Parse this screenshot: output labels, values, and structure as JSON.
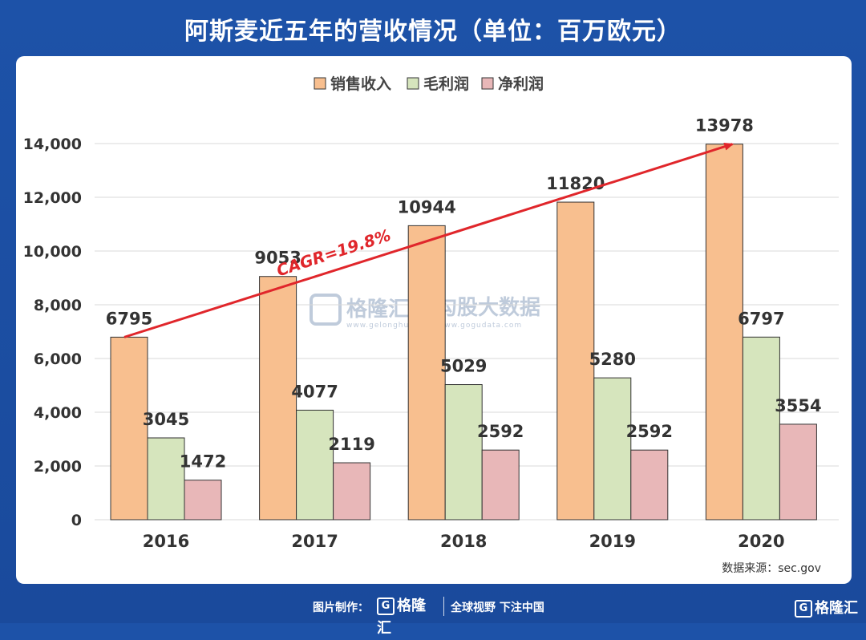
{
  "page": {
    "title": "阿斯麦近五年的营收情况（单位：百万欧元）",
    "footer_made": "图片制作：",
    "footer_logo": "格隆汇",
    "footer_slogan": "全球视野 下注中国",
    "footer_corner": "格隆汇",
    "watermark_brand": "格隆汇",
    "watermark_site": "勾股大数据",
    "watermark_url": "www.gogudata.com",
    "watermark_brand_url": "www.gelonghui.com",
    "source": "数据来源：sec.gov",
    "annotation": "CAGR=19.8%"
  },
  "colors": {
    "sales": "#f8bf8f",
    "gross": "#d6e5bd",
    "net": "#e8b7b8",
    "arrow": "#e0262b"
  },
  "chart_data": {
    "type": "bar",
    "categories": [
      "2016",
      "2017",
      "2018",
      "2019",
      "2020"
    ],
    "series": [
      {
        "name": "销售收入",
        "values": [
          6795,
          9053,
          10944,
          11820,
          13978
        ]
      },
      {
        "name": "毛利润",
        "values": [
          3045,
          4077,
          5029,
          5280,
          6797
        ]
      },
      {
        "name": "净利润",
        "values": [
          1472,
          2119,
          2592,
          2592,
          3554
        ]
      }
    ],
    "yticks": [
      "0",
      "2,000",
      "4,000",
      "6,000",
      "8,000",
      "10,000",
      "12,000",
      "14,000"
    ],
    "ylim": [
      0,
      14000
    ],
    "grid": true,
    "legend": "top-center",
    "trend": {
      "label": "CAGR=19.8%",
      "from": "2016",
      "to": "2020"
    }
  }
}
